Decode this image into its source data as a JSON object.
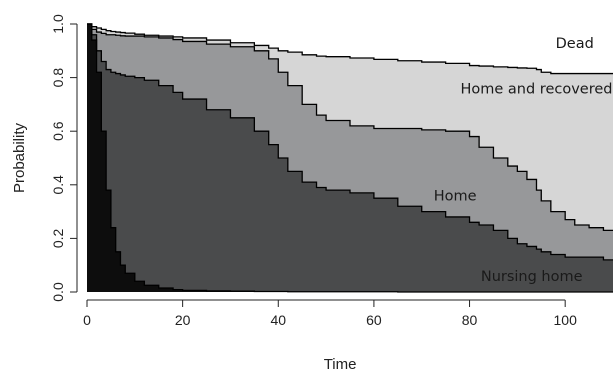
{
  "chart_data": {
    "type": "area",
    "title": "",
    "xlabel": "Time",
    "ylabel": "Probability",
    "xlim": [
      0,
      110
    ],
    "ylim": [
      0,
      1
    ],
    "x_ticks": [
      0,
      20,
      40,
      60,
      80,
      100
    ],
    "y_ticks": [
      0.0,
      0.2,
      0.4,
      0.6,
      0.8,
      1.0
    ],
    "x_tick_labels": [
      "0",
      "20",
      "40",
      "60",
      "80",
      "100"
    ],
    "y_tick_labels": [
      "0.0",
      "0.2",
      "0.4",
      "0.6",
      "0.8",
      "1.0"
    ],
    "stacking": "cumulative, bottom to top",
    "grid": false,
    "legend": "none",
    "x": [
      0,
      1,
      2,
      3,
      4,
      5,
      6,
      7,
      8,
      10,
      12,
      15,
      18,
      20,
      25,
      30,
      35,
      38,
      40,
      42,
      45,
      48,
      50,
      55,
      60,
      65,
      70,
      75,
      80,
      82,
      85,
      88,
      90,
      92,
      94,
      95,
      97,
      100,
      102,
      105,
      108,
      110
    ],
    "series": [
      {
        "name": "Nursing home",
        "color": "#0d0d0d",
        "boundary": [
          1.0,
          0.94,
          0.82,
          0.6,
          0.38,
          0.24,
          0.15,
          0.1,
          0.07,
          0.04,
          0.025,
          0.015,
          0.009,
          0.006,
          0.004,
          0.003,
          0.002,
          0.002,
          0.002,
          0.001,
          0.001,
          0.001,
          0.001,
          0.001,
          0.001,
          0.0,
          0.0,
          0.0,
          0.0,
          0.0,
          0.0,
          0.0,
          0.0,
          0.0,
          0.0,
          0.0,
          0.0,
          0.0,
          0.0,
          0.0,
          0.0,
          0.0
        ],
        "label_anchor": {
          "x": 93,
          "y": 0.06
        }
      },
      {
        "name": "Home",
        "color": "#4a4b4c",
        "boundary": [
          1.0,
          0.96,
          0.9,
          0.86,
          0.83,
          0.82,
          0.815,
          0.81,
          0.805,
          0.8,
          0.79,
          0.77,
          0.745,
          0.72,
          0.68,
          0.65,
          0.6,
          0.55,
          0.5,
          0.45,
          0.41,
          0.39,
          0.38,
          0.37,
          0.35,
          0.32,
          0.3,
          0.28,
          0.26,
          0.25,
          0.23,
          0.2,
          0.18,
          0.17,
          0.16,
          0.15,
          0.14,
          0.13,
          0.13,
          0.13,
          0.12,
          0.12
        ],
        "label_anchor": {
          "x": 77,
          "y": 0.36
        }
      },
      {
        "name": "Home and recovered",
        "color": "#97989a",
        "boundary": [
          1.0,
          0.98,
          0.97,
          0.965,
          0.96,
          0.96,
          0.958,
          0.956,
          0.955,
          0.955,
          0.952,
          0.948,
          0.942,
          0.935,
          0.925,
          0.915,
          0.9,
          0.87,
          0.82,
          0.77,
          0.7,
          0.66,
          0.64,
          0.62,
          0.61,
          0.61,
          0.605,
          0.6,
          0.58,
          0.54,
          0.5,
          0.47,
          0.45,
          0.42,
          0.38,
          0.34,
          0.3,
          0.27,
          0.25,
          0.24,
          0.23,
          0.23
        ],
        "label_anchor": {
          "x": 94,
          "y": 0.76
        }
      },
      {
        "name": "Dead",
        "color": "#d6d6d6",
        "boundary": [
          1.0,
          0.99,
          0.985,
          0.98,
          0.975,
          0.972,
          0.97,
          0.968,
          0.966,
          0.962,
          0.958,
          0.955,
          0.952,
          0.948,
          0.94,
          0.93,
          0.92,
          0.91,
          0.9,
          0.895,
          0.885,
          0.88,
          0.878,
          0.873,
          0.868,
          0.863,
          0.858,
          0.853,
          0.845,
          0.843,
          0.84,
          0.838,
          0.836,
          0.835,
          0.83,
          0.82,
          0.815,
          0.815,
          0.815,
          0.815,
          0.815,
          0.815
        ],
        "label_anchor": {
          "x": 102,
          "y": 0.93
        }
      }
    ]
  }
}
